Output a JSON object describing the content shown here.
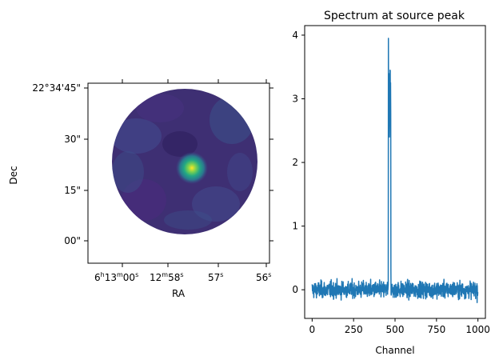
{
  "chart_data": [
    {
      "type": "heatmap",
      "title": "",
      "xlabel": "RA",
      "ylabel": "Dec",
      "x_tick_labels": [
        {
          "main": "6",
          "sup": "h",
          "main2": "13",
          "sup2": "m",
          "main3": "00",
          "sup3": "s"
        },
        {
          "main": "12",
          "sup": "m",
          "main2": "58",
          "sup2": "s"
        },
        {
          "main": "57",
          "sup": "s"
        },
        {
          "main": "56",
          "sup": "s"
        }
      ],
      "y_tick_labels": [
        "22°34'45\"",
        "30\"",
        "15\"",
        "00\""
      ],
      "colormap": "viridis",
      "map_description": "circular region of low emission with one bright compact source slightly right of center",
      "peak_value_relative": 1.0,
      "background_value_relative": 0.1,
      "grid": false
    },
    {
      "type": "line",
      "title": "Spectrum at source peak",
      "xlabel": "Channel",
      "ylabel": "",
      "xlim": [
        -45,
        1045
      ],
      "ylim": [
        -0.45,
        4.15
      ],
      "xticks": [
        0,
        250,
        500,
        750,
        1000
      ],
      "yticks": [
        0,
        1,
        2,
        3,
        4
      ],
      "grid": false,
      "series": [
        {
          "color": "#1f77b4",
          "noise_level": 0.12,
          "n_channels": 1001,
          "peaks": [
            {
              "channel": 460,
              "value": 3.95
            },
            {
              "channel": 462,
              "value": 3.4
            },
            {
              "channel": 466,
              "value": 2.4
            },
            {
              "channel": 470,
              "value": 3.45
            },
            {
              "channel": 475,
              "value": 0.3
            }
          ]
        }
      ]
    }
  ]
}
